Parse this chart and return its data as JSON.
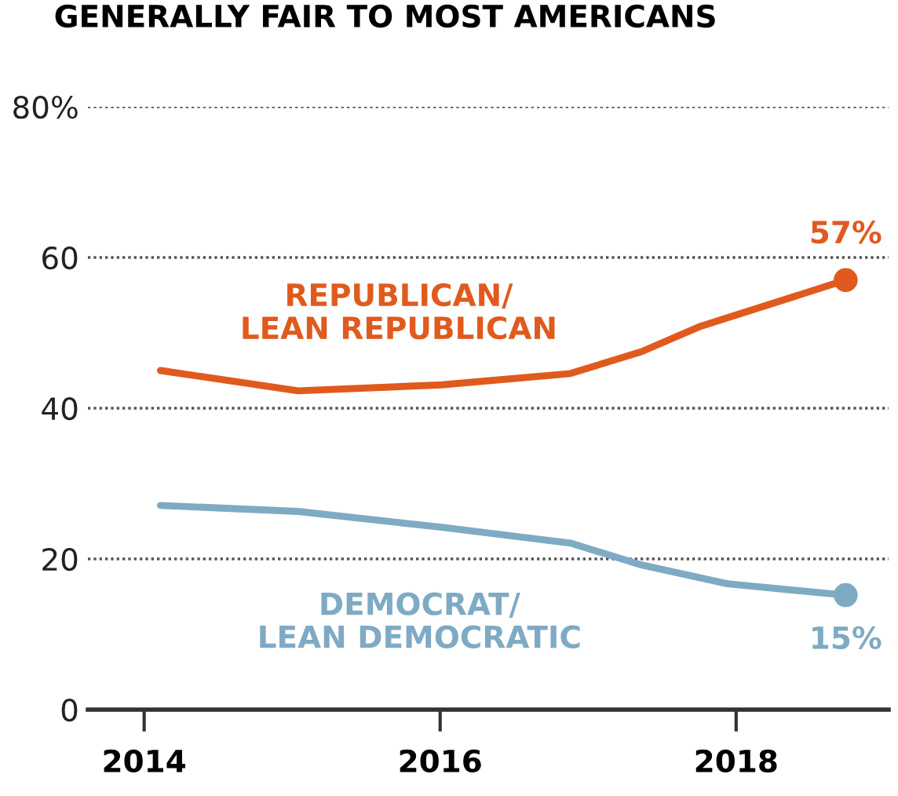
{
  "chart_data": {
    "type": "line",
    "title": "GENERALLY FAIR TO MOST AMERICANS",
    "series": [
      {
        "name": "REPUBLICAN/\nLEAN REPUBLICAN",
        "color": "#e05a1e",
        "x": [
          2014.11,
          2015.04,
          2016.01,
          2016.88,
          2017.36,
          2017.75,
          2018.74
        ],
        "values": [
          45,
          42.3,
          43.1,
          44.6,
          47.5,
          50.8,
          57
        ]
      },
      {
        "name": "DEMOCRAT/\nLEAN DEMOCRATIC",
        "color": "#7faac4",
        "x": [
          2014.11,
          2015.04,
          2016.01,
          2016.88,
          2017.36,
          2017.94,
          2018.74
        ],
        "values": [
          27.1,
          26.3,
          24.2,
          22.1,
          19.2,
          16.7,
          15.2
        ]
      },
      {
        "type": "scatter",
        "marker": "circle",
        "color": "#e05a1e",
        "x": [
          2018.74
        ],
        "values": [
          57
        ],
        "value_labels": [
          "57%"
        ]
      },
      {
        "type": "scatter",
        "marker": "circle",
        "color": "#7faac4",
        "x": [
          2018.74
        ],
        "values": [
          15.2
        ],
        "value_labels": [
          "15%"
        ]
      }
    ],
    "xlim": [
      2013.62,
      2019.03
    ],
    "xticks": [
      2014,
      2016,
      2018
    ],
    "ylim": [
      0,
      80
    ],
    "yticks": [
      0,
      20,
      40,
      60,
      {
        "value": 80,
        "label": "80%"
      }
    ],
    "grid": "y",
    "line_style": "solid",
    "legend": false
  }
}
